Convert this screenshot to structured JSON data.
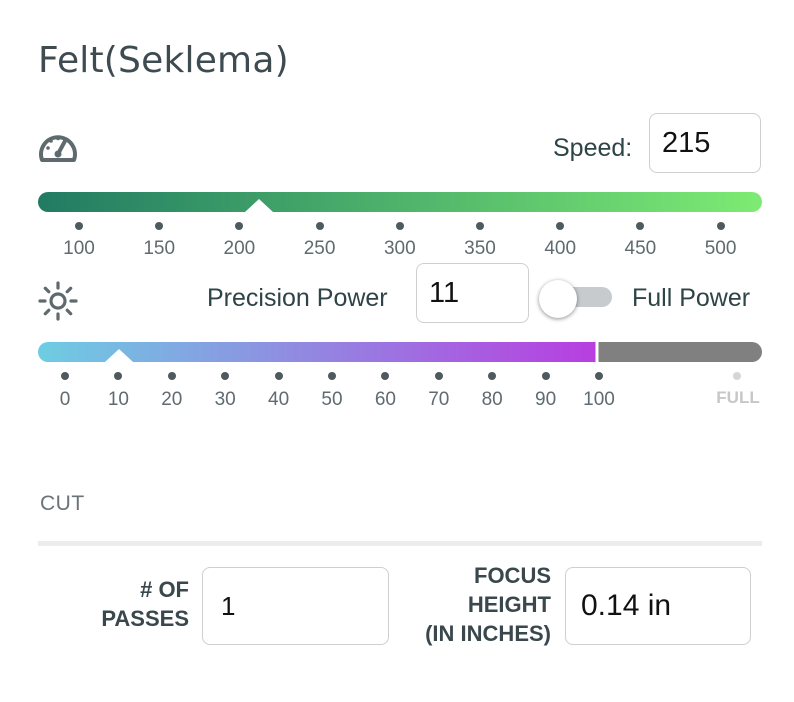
{
  "title": "Felt(Seklema)",
  "icons": {
    "speed": "gauge-icon",
    "power": "sun-icon"
  },
  "speed": {
    "label": "Speed:",
    "value": "215",
    "ticks": [
      "100",
      "150",
      "200",
      "250",
      "300",
      "350",
      "400",
      "450",
      "500"
    ],
    "gradient": [
      "#217b63",
      "#7deb73"
    ]
  },
  "power": {
    "precision_label": "Precision Power",
    "value": "11",
    "full_power_label": "Full Power",
    "full_power_on": false,
    "ticks": [
      "0",
      "10",
      "20",
      "30",
      "40",
      "50",
      "60",
      "70",
      "80",
      "90",
      "100"
    ],
    "full_tick": "FULL",
    "gradient": [
      "#6ecde2",
      "#b83ee0"
    ],
    "disabled_color": "#808080"
  },
  "cut": {
    "section_label": "CUT",
    "passes_label_line1": "# OF",
    "passes_label_line2": "PASSES",
    "passes_value": "1",
    "focus_label_line1": "FOCUS",
    "focus_label_line2": "HEIGHT",
    "focus_label_line3": "(IN INCHES)",
    "focus_value": "0.14 in"
  }
}
